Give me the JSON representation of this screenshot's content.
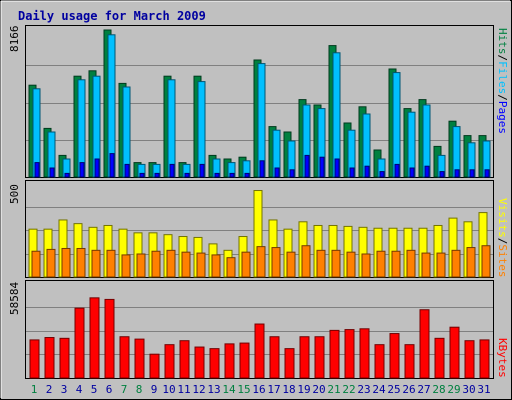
{
  "chart_data": [
    {
      "type": "bar",
      "title": "Daily usage for March 2009",
      "categories": [
        "1",
        "2",
        "3",
        "4",
        "5",
        "6",
        "7",
        "8",
        "9",
        "10",
        "11",
        "12",
        "13",
        "14",
        "15",
        "16",
        "17",
        "18",
        "19",
        "20",
        "21",
        "22",
        "23",
        "24",
        "25",
        "26",
        "27",
        "28",
        "29",
        "30",
        "31"
      ],
      "weekend_days": [
        "1",
        "7",
        "8",
        "14",
        "15",
        "21",
        "22",
        "28",
        "29"
      ],
      "ymax_label": "8166",
      "series": [
        {
          "name": "Hits",
          "color": "#008040",
          "values": [
            5100,
            2700,
            1200,
            5600,
            5900,
            8166,
            5200,
            800,
            800,
            5600,
            800,
            5600,
            1200,
            1000,
            1100,
            6500,
            2800,
            2500,
            4300,
            4000,
            7300,
            3000,
            3900,
            1500,
            6000,
            3800,
            4300,
            1700,
            3100,
            2300,
            2300
          ]
        },
        {
          "name": "Files",
          "color": "#00c0ff",
          "values": [
            4900,
            2500,
            1000,
            5400,
            5600,
            7900,
            5000,
            700,
            700,
            5400,
            700,
            5300,
            1000,
            800,
            900,
            6300,
            2600,
            2000,
            4000,
            3800,
            6900,
            2600,
            3500,
            1000,
            5800,
            3600,
            4000,
            1200,
            2800,
            1900,
            2000
          ]
        },
        {
          "name": "Pages",
          "color": "#0000ff",
          "values": [
            800,
            500,
            200,
            800,
            1000,
            1300,
            700,
            200,
            200,
            700,
            200,
            700,
            200,
            200,
            200,
            900,
            500,
            400,
            1200,
            1100,
            1000,
            500,
            600,
            300,
            700,
            500,
            600,
            300,
            400,
            400,
            400
          ]
        }
      ]
    },
    {
      "type": "bar",
      "ymax_label": "500",
      "series": [
        {
          "name": "Visits",
          "color": "#ffff00",
          "values": [
            260,
            260,
            310,
            290,
            270,
            280,
            260,
            240,
            240,
            230,
            220,
            215,
            180,
            145,
            220,
            470,
            310,
            260,
            300,
            280,
            280,
            275,
            270,
            265,
            265,
            265,
            265,
            280,
            320,
            300,
            350
          ]
        },
        {
          "name": "Sites",
          "color": "#ff8000",
          "values": [
            140,
            150,
            155,
            155,
            145,
            145,
            120,
            125,
            140,
            145,
            135,
            130,
            120,
            105,
            135,
            165,
            160,
            135,
            170,
            145,
            145,
            135,
            125,
            140,
            140,
            145,
            130,
            130,
            145,
            160,
            170
          ]
        }
      ]
    },
    {
      "type": "bar",
      "ymax_label": "58584",
      "series": [
        {
          "name": "KBytes",
          "color": "#ff0000",
          "values": [
            24000,
            25500,
            25000,
            44000,
            50500,
            49500,
            26000,
            24500,
            15000,
            21000,
            23500,
            19500,
            18500,
            21500,
            22000,
            34000,
            26000,
            18500,
            26000,
            26000,
            30000,
            30500,
            31000,
            21000,
            28000,
            21000,
            43000,
            25000,
            32000,
            23500,
            24000
          ]
        }
      ]
    }
  ],
  "labels": {
    "hits": "Hits",
    "files": "Files",
    "pages": "Pages",
    "visits": "Visits",
    "sites": "Sites",
    "kbytes": "KBytes",
    "sep": "/"
  },
  "colors": {
    "panel_bg": "#c0c0c0",
    "gridline": "#808080",
    "weekday_label": "#0000a0",
    "weekend_label": "#008040",
    "title": "#0000a0"
  }
}
